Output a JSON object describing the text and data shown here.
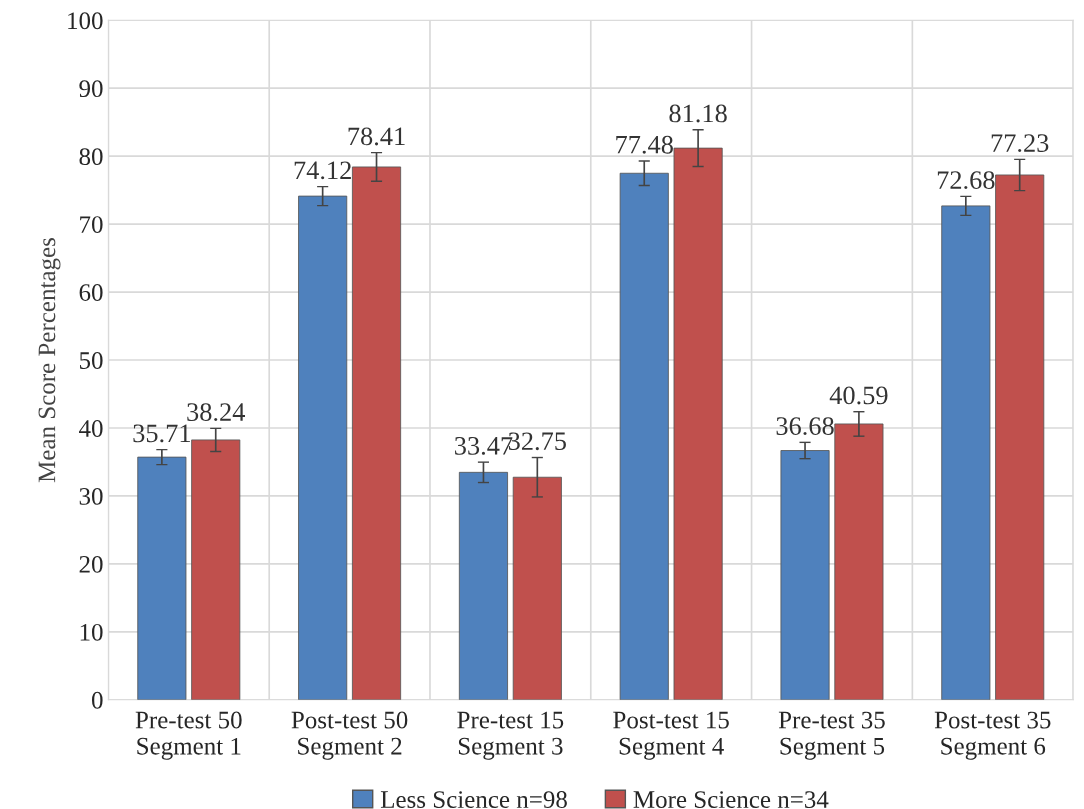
{
  "chart_data": {
    "type": "bar",
    "ylabel": "Mean Score Percentages",
    "categories": [
      "Pre-test 50\nSegment 1",
      "Post-test 50\nSegment 2",
      "Pre-test 15\nSegment 3",
      "Post-test 15\nSegment 4",
      "Pre-test 35\nSegment 5",
      "Post-test 35\nSegment 6"
    ],
    "series": [
      {
        "name": "Less Science n=98",
        "color": "#4f81bd",
        "values": [
          35.71,
          74.12,
          33.47,
          77.48,
          36.68,
          72.68
        ],
        "errors": [
          1.1,
          1.4,
          1.5,
          1.8,
          1.2,
          1.4
        ]
      },
      {
        "name": "More Science n=34",
        "color": "#c0504d",
        "values": [
          38.24,
          78.41,
          32.75,
          81.18,
          40.59,
          77.23
        ],
        "errors": [
          1.7,
          2.1,
          2.9,
          2.7,
          1.8,
          2.3
        ]
      }
    ],
    "ylim": [
      0,
      100
    ],
    "yticks": [
      0,
      10,
      20,
      30,
      40,
      50,
      60,
      70,
      80,
      90,
      100
    ],
    "data_labels": true,
    "grid": true,
    "legend": "bottom"
  }
}
